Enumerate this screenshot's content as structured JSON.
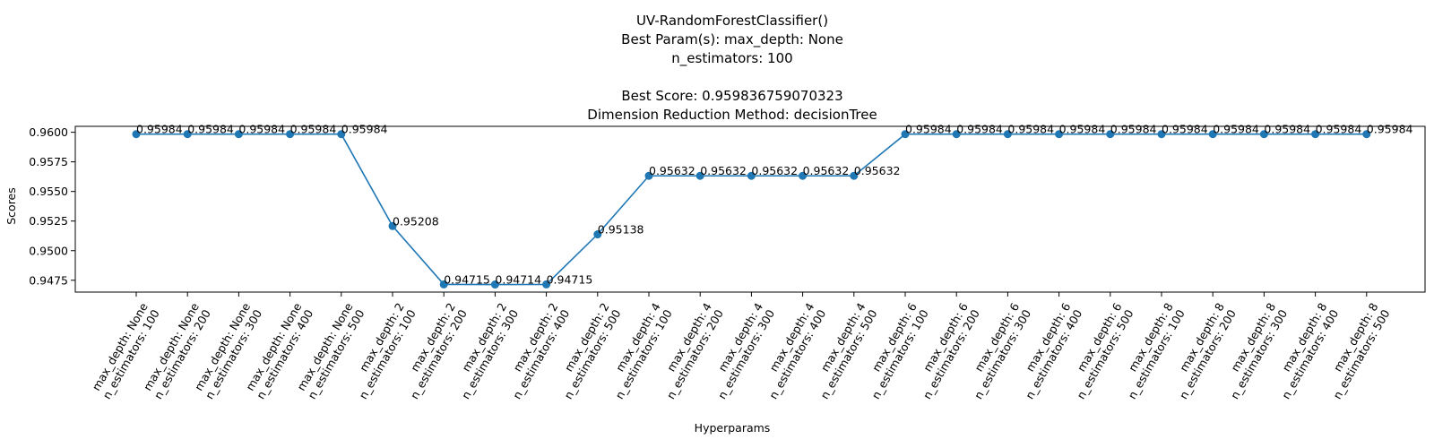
{
  "chart_data": {
    "type": "line",
    "title_lines": [
      "UV-RandomForestClassifier()",
      "Best Param(s): max_depth: None",
      "n_estimators: 100",
      "",
      "Best Score: 0.959836759070323",
      "Dimension Reduction Method: decisionTree"
    ],
    "xlabel": "Hyperparams",
    "ylabel": "Scores",
    "ylim": [
      0.9465,
      0.9605
    ],
    "yticks": [
      0.9475,
      0.95,
      0.9525,
      0.955,
      0.9575,
      0.96
    ],
    "ytick_labels": [
      "0.9475",
      "0.9500",
      "0.9525",
      "0.9550",
      "0.9575",
      "0.9600"
    ],
    "series_color": "#1f77b4",
    "categories": [
      [
        "max_depth: None",
        "n_estimators: 100"
      ],
      [
        "max_depth: None",
        "n_estimators: 200"
      ],
      [
        "max_depth: None",
        "n_estimators: 300"
      ],
      [
        "max_depth: None",
        "n_estimators: 400"
      ],
      [
        "max_depth: None",
        "n_estimators: 500"
      ],
      [
        "max_depth: 2",
        "n_estimators: 100"
      ],
      [
        "max_depth: 2",
        "n_estimators: 200"
      ],
      [
        "max_depth: 2",
        "n_estimators: 300"
      ],
      [
        "max_depth: 2",
        "n_estimators: 400"
      ],
      [
        "max_depth: 2",
        "n_estimators: 500"
      ],
      [
        "max_depth: 4",
        "n_estimators: 100"
      ],
      [
        "max_depth: 4",
        "n_estimators: 200"
      ],
      [
        "max_depth: 4",
        "n_estimators: 300"
      ],
      [
        "max_depth: 4",
        "n_estimators: 400"
      ],
      [
        "max_depth: 4",
        "n_estimators: 500"
      ],
      [
        "max_depth: 6",
        "n_estimators: 100"
      ],
      [
        "max_depth: 6",
        "n_estimators: 200"
      ],
      [
        "max_depth: 6",
        "n_estimators: 300"
      ],
      [
        "max_depth: 6",
        "n_estimators: 400"
      ],
      [
        "max_depth: 6",
        "n_estimators: 500"
      ],
      [
        "max_depth: 8",
        "n_estimators: 100"
      ],
      [
        "max_depth: 8",
        "n_estimators: 200"
      ],
      [
        "max_depth: 8",
        "n_estimators: 300"
      ],
      [
        "max_depth: 8",
        "n_estimators: 400"
      ],
      [
        "max_depth: 8",
        "n_estimators: 500"
      ]
    ],
    "values": [
      0.95984,
      0.95984,
      0.95984,
      0.95984,
      0.95984,
      0.95208,
      0.94715,
      0.94714,
      0.94715,
      0.95138,
      0.95632,
      0.95632,
      0.95632,
      0.95632,
      0.95632,
      0.95984,
      0.95984,
      0.95984,
      0.95984,
      0.95984,
      0.95984,
      0.95984,
      0.95984,
      0.95984,
      0.95984
    ],
    "value_labels": [
      "0.95984",
      "0.95984",
      "0.95984",
      "0.95984",
      "0.95984",
      "0.95208",
      "0.94715",
      "0.94714",
      "0.94715",
      "0.95138",
      "0.95632",
      "0.95632",
      "0.95632",
      "0.95632",
      "0.95632",
      "0.95984",
      "0.95984",
      "0.95984",
      "0.95984",
      "0.95984",
      "0.95984",
      "0.95984",
      "0.95984",
      "0.95984",
      "0.95984"
    ]
  }
}
